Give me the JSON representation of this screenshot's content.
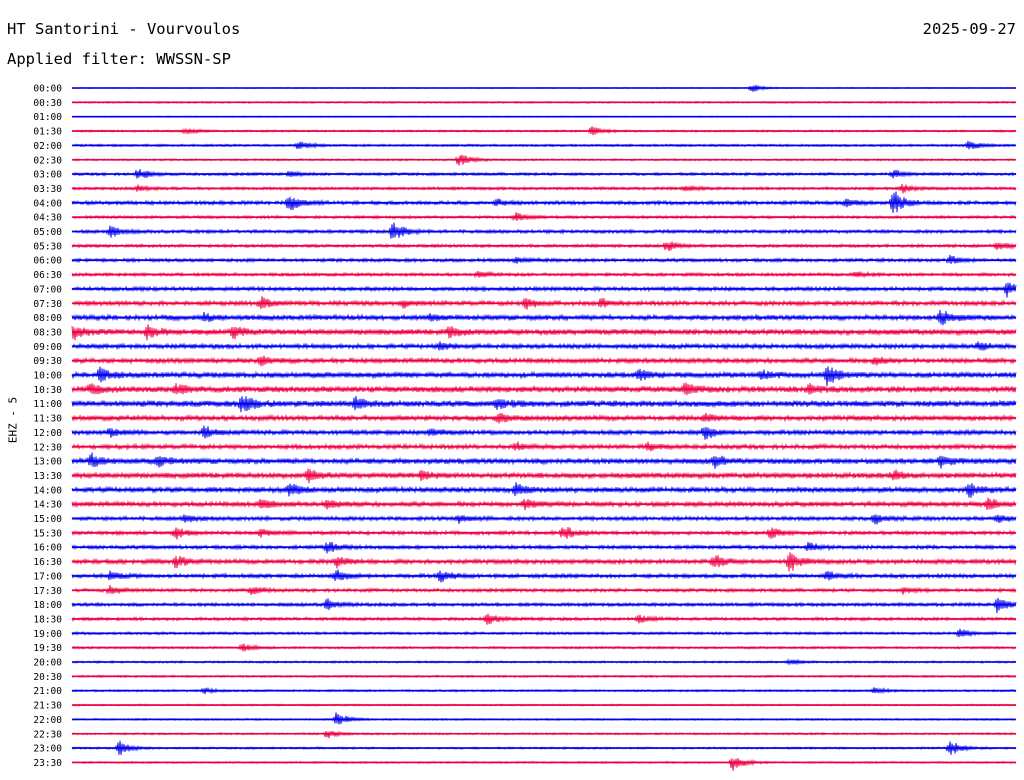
{
  "header": {
    "station": "HT Santorini - Vourvoulos",
    "date": "2025-09-27",
    "filter": "Applied filter: WWSSN-SP",
    "channel": "EHZ - 5"
  },
  "colors": {
    "even_row": "#0000ee",
    "odd_row": "#ee0044"
  },
  "chart_data": {
    "type": "line",
    "description_of_series": "helicorder trace rows",
    "row_labels": [
      "00:00",
      "00:30",
      "01:00",
      "01:30",
      "02:00",
      "02:30",
      "03:00",
      "03:30",
      "04:00",
      "04:30",
      "05:00",
      "05:30",
      "06:00",
      "06:30",
      "07:00",
      "07:30",
      "08:00",
      "08:30",
      "09:00",
      "09:30",
      "10:00",
      "10:30",
      "11:00",
      "11:30",
      "12:00",
      "12:30",
      "13:00",
      "13:30",
      "14:00",
      "14:30",
      "15:00",
      "15:30",
      "16:00",
      "16:30",
      "17:00",
      "17:30",
      "18:00",
      "18:30",
      "19:00",
      "19:30",
      "20:00",
      "20:30",
      "21:00",
      "21:30",
      "22:00",
      "22:30",
      "23:00",
      "23:30"
    ],
    "row_minutes": 30,
    "noise_level": [
      0.4,
      0.6,
      0.4,
      0.7,
      0.8,
      0.7,
      1.0,
      1.0,
      1.3,
      1.0,
      1.2,
      1.1,
      1.2,
      1.1,
      1.4,
      1.6,
      1.8,
      2.0,
      1.6,
      1.7,
      2.0,
      2.2,
      2.2,
      1.8,
      1.6,
      1.6,
      2.0,
      1.9,
      1.9,
      1.7,
      1.4,
      1.3,
      1.3,
      1.6,
      1.4,
      1.2,
      1.2,
      1.1,
      0.9,
      0.8,
      0.7,
      0.7,
      0.7,
      0.6,
      0.6,
      0.7,
      0.7,
      0.6
    ],
    "events": [
      [
        [
          0.72,
          3
        ]
      ],
      [],
      [],
      [
        [
          0.55,
          3
        ],
        [
          0.12,
          2
        ]
      ],
      [
        [
          0.24,
          3
        ],
        [
          0.95,
          3
        ]
      ],
      [
        [
          0.41,
          5
        ]
      ],
      [
        [
          0.07,
          4
        ],
        [
          0.23,
          2
        ],
        [
          0.87,
          3
        ]
      ],
      [
        [
          0.07,
          2
        ],
        [
          0.65,
          2
        ],
        [
          0.88,
          3
        ]
      ],
      [
        [
          0.23,
          7
        ],
        [
          0.45,
          2
        ],
        [
          0.82,
          3
        ],
        [
          0.87,
          9
        ]
      ],
      [
        [
          0.47,
          3
        ]
      ],
      [
        [
          0.04,
          4
        ],
        [
          0.34,
          8
        ]
      ],
      [
        [
          0.63,
          4
        ],
        [
          0.98,
          3
        ]
      ],
      [
        [
          0.47,
          2
        ],
        [
          0.93,
          3
        ]
      ],
      [
        [
          0.43,
          2
        ],
        [
          0.83,
          2
        ]
      ],
      [
        [
          0.99,
          5
        ]
      ],
      [
        [
          0.2,
          4
        ],
        [
          0.35,
          3
        ],
        [
          0.48,
          4
        ],
        [
          0.56,
          3
        ]
      ],
      [
        [
          0.14,
          3
        ],
        [
          0.38,
          2
        ],
        [
          0.92,
          6
        ]
      ],
      [
        [
          0.0,
          5
        ],
        [
          0.08,
          5
        ],
        [
          0.17,
          4
        ],
        [
          0.4,
          4
        ]
      ],
      [
        [
          0.39,
          3
        ],
        [
          0.96,
          3
        ]
      ],
      [
        [
          0.2,
          3
        ],
        [
          0.85,
          3
        ]
      ],
      [
        [
          0.03,
          5
        ],
        [
          0.6,
          4
        ],
        [
          0.8,
          7
        ],
        [
          0.73,
          3
        ]
      ],
      [
        [
          0.02,
          4
        ],
        [
          0.11,
          4
        ],
        [
          0.65,
          4
        ],
        [
          0.78,
          3
        ]
      ],
      [
        [
          0.18,
          7
        ],
        [
          0.3,
          4
        ],
        [
          0.45,
          4
        ]
      ],
      [
        [
          0.45,
          3
        ],
        [
          0.67,
          3
        ]
      ],
      [
        [
          0.04,
          3
        ],
        [
          0.14,
          4
        ],
        [
          0.38,
          3
        ],
        [
          0.67,
          5
        ]
      ],
      [
        [
          0.47,
          3
        ],
        [
          0.61,
          3
        ]
      ],
      [
        [
          0.02,
          5
        ],
        [
          0.09,
          4
        ],
        [
          0.68,
          4
        ],
        [
          0.92,
          4
        ]
      ],
      [
        [
          0.25,
          4
        ],
        [
          0.37,
          3
        ],
        [
          0.87,
          3
        ]
      ],
      [
        [
          0.23,
          5
        ],
        [
          0.47,
          4
        ],
        [
          0.95,
          5
        ]
      ],
      [
        [
          0.2,
          4
        ],
        [
          0.27,
          3
        ],
        [
          0.48,
          4
        ],
        [
          0.97,
          4
        ]
      ],
      [
        [
          0.12,
          3
        ],
        [
          0.41,
          3
        ],
        [
          0.85,
          4
        ],
        [
          0.98,
          3
        ]
      ],
      [
        [
          0.11,
          4
        ],
        [
          0.2,
          3
        ],
        [
          0.52,
          5
        ],
        [
          0.74,
          4
        ]
      ],
      [
        [
          0.27,
          4
        ],
        [
          0.78,
          3
        ]
      ],
      [
        [
          0.11,
          4
        ],
        [
          0.28,
          4
        ],
        [
          0.68,
          5
        ],
        [
          0.76,
          7
        ]
      ],
      [
        [
          0.04,
          3
        ],
        [
          0.28,
          4
        ],
        [
          0.39,
          4
        ],
        [
          0.8,
          3
        ]
      ],
      [
        [
          0.04,
          3
        ],
        [
          0.19,
          3
        ],
        [
          0.88,
          3
        ]
      ],
      [
        [
          0.27,
          4
        ],
        [
          0.98,
          5
        ]
      ],
      [
        [
          0.44,
          4
        ],
        [
          0.6,
          3
        ]
      ],
      [
        [
          0.94,
          3
        ]
      ],
      [
        [
          0.18,
          3
        ]
      ],
      [
        [
          0.76,
          2
        ]
      ],
      [],
      [
        [
          0.14,
          2
        ],
        [
          0.85,
          2
        ]
      ],
      [],
      [
        [
          0.28,
          5
        ]
      ],
      [
        [
          0.27,
          3
        ]
      ],
      [
        [
          0.05,
          5
        ],
        [
          0.93,
          6
        ]
      ],
      [
        [
          0.7,
          6
        ]
      ]
    ]
  }
}
